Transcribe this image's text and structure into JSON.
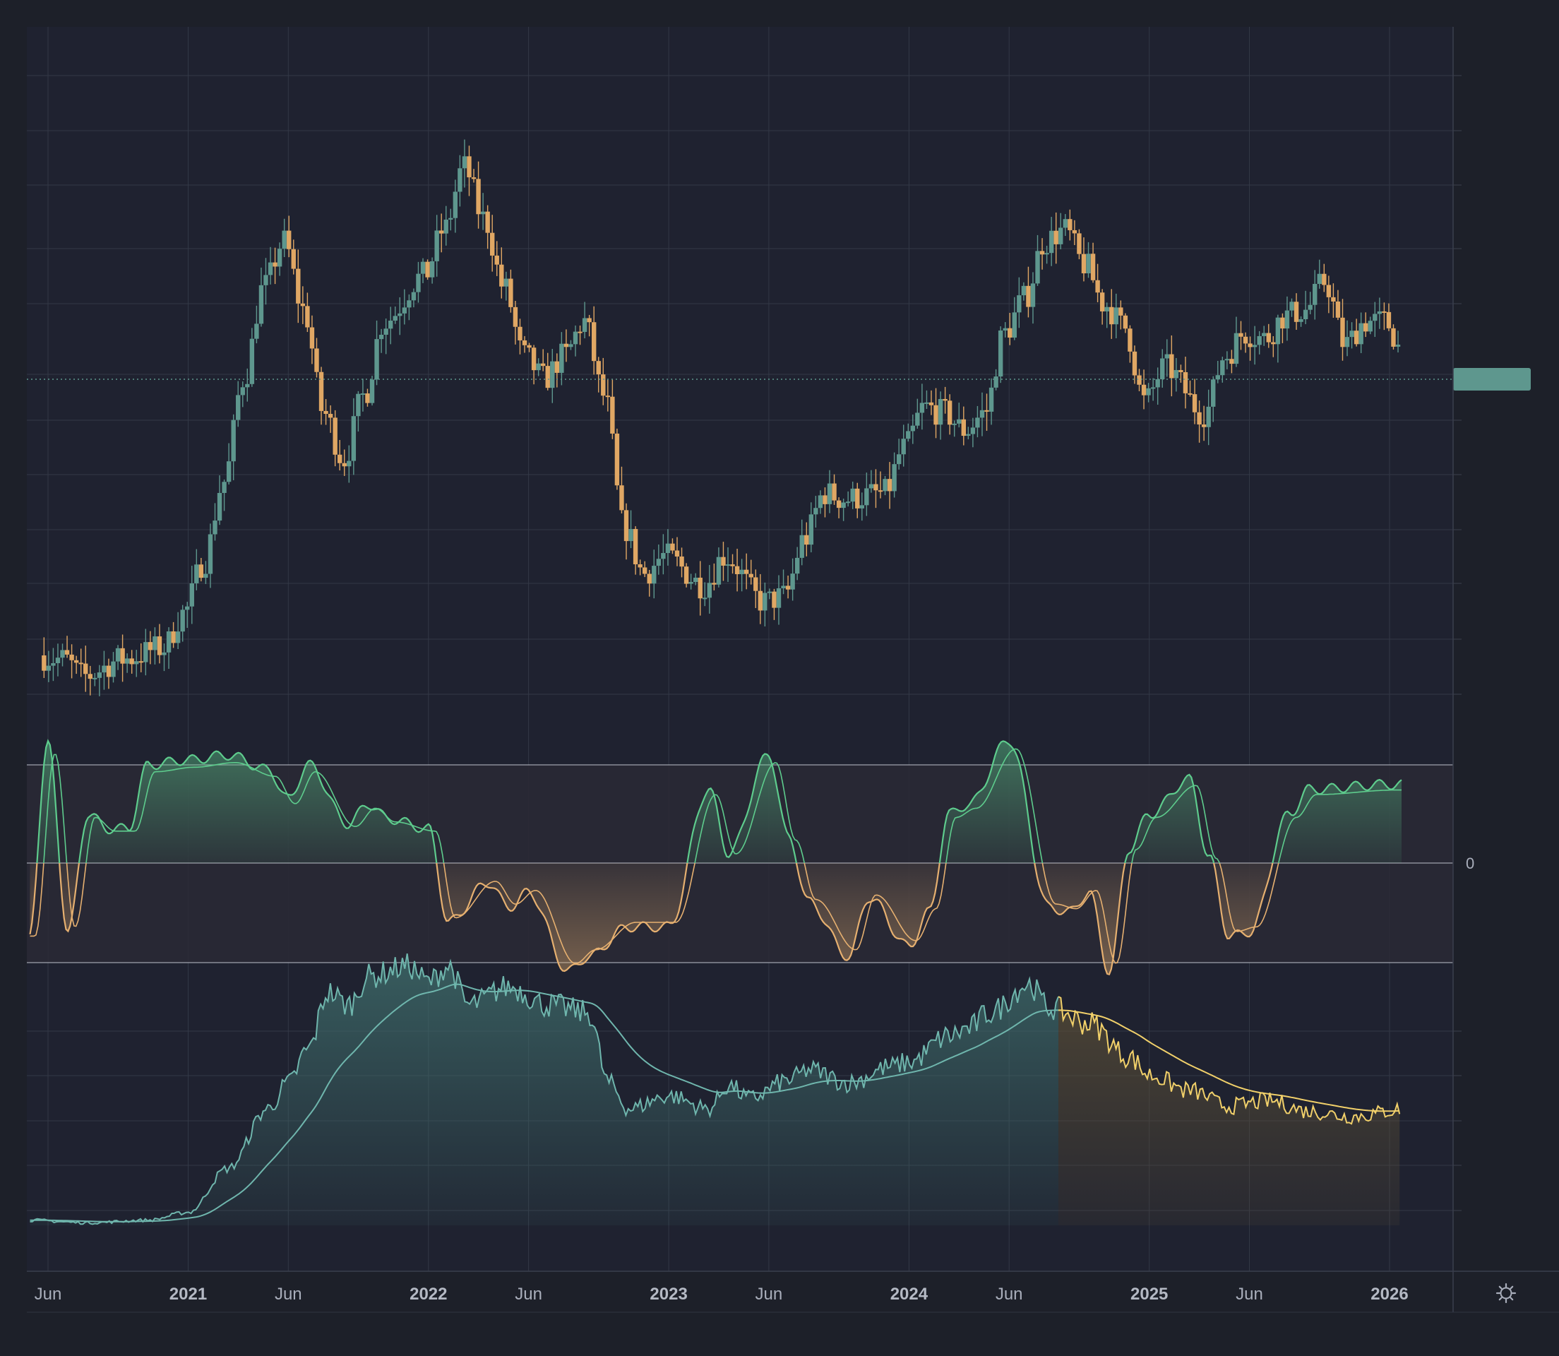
{
  "colors": {
    "background": "#1d2029",
    "pane": "#1f2230",
    "grid": "#333846",
    "up": "#5e978e",
    "down": "#e0a764",
    "osc_up": "#5ecc8d",
    "osc_down": "#e6b070",
    "volume_line": "#6fb6ad",
    "volume_fill_up": "#3f6e6c",
    "volume_fill_down": "#5b4f36",
    "slow_line": "#f1d06a",
    "price_label": "#5e978e"
  },
  "x_axis": {
    "ticks": [
      {
        "label": "Jun",
        "date": "2020-06",
        "major": false
      },
      {
        "label": "2021",
        "date": "2021-01",
        "major": true
      },
      {
        "label": "Jun",
        "date": "2021-06",
        "major": false
      },
      {
        "label": "2022",
        "date": "2022-01",
        "major": true
      },
      {
        "label": "Jun",
        "date": "2022-06",
        "major": false
      },
      {
        "label": "2023",
        "date": "2023-01",
        "major": true
      },
      {
        "label": "Jun",
        "date": "2023-06",
        "major": false
      },
      {
        "label": "2024",
        "date": "2024-01",
        "major": true
      },
      {
        "label": "Jun",
        "date": "2024-06",
        "major": false
      },
      {
        "label": "2025",
        "date": "2025-01",
        "major": true
      },
      {
        "label": "Jun",
        "date": "2025-06",
        "major": false
      },
      {
        "label": "2026",
        "date": "2026-01",
        "major": true
      }
    ]
  },
  "oscillator": {
    "zero_label": "0"
  },
  "settings_icon": "gear-icon",
  "chart_data": [
    {
      "type": "candlestick",
      "pane": "price",
      "x_range": [
        "2020-05",
        "2026-02"
      ],
      "y_range": [
        0,
        100
      ],
      "y_axis_labels": "not shown",
      "grid": true,
      "last_price_marker": true,
      "anchors": [
        {
          "d": "2020-05",
          "v": 8
        },
        {
          "d": "2020-07",
          "v": 7
        },
        {
          "d": "2020-08",
          "v": 4
        },
        {
          "d": "2020-10",
          "v": 7
        },
        {
          "d": "2020-12",
          "v": 9
        },
        {
          "d": "2021-01",
          "v": 15
        },
        {
          "d": "2021-02",
          "v": 24
        },
        {
          "d": "2021-03",
          "v": 38
        },
        {
          "d": "2021-04",
          "v": 56
        },
        {
          "d": "2021-05",
          "v": 72
        },
        {
          "d": "2021-06",
          "v": 80
        },
        {
          "d": "2021-07",
          "v": 68
        },
        {
          "d": "2021-08",
          "v": 50
        },
        {
          "d": "2021-09",
          "v": 42
        },
        {
          "d": "2021-10",
          "v": 53
        },
        {
          "d": "2021-11",
          "v": 66
        },
        {
          "d": "2022-01",
          "v": 74
        },
        {
          "d": "2022-02",
          "v": 82
        },
        {
          "d": "2022-03",
          "v": 93
        },
        {
          "d": "2022-04",
          "v": 84
        },
        {
          "d": "2022-05",
          "v": 72
        },
        {
          "d": "2022-06",
          "v": 60
        },
        {
          "d": "2022-07",
          "v": 56
        },
        {
          "d": "2022-08",
          "v": 60
        },
        {
          "d": "2022-09",
          "v": 66
        },
        {
          "d": "2022-10",
          "v": 53
        },
        {
          "d": "2022-11",
          "v": 30
        },
        {
          "d": "2022-12",
          "v": 22
        },
        {
          "d": "2023-01",
          "v": 25
        },
        {
          "d": "2023-03",
          "v": 20
        },
        {
          "d": "2023-04",
          "v": 25
        },
        {
          "d": "2023-06",
          "v": 17
        },
        {
          "d": "2023-07",
          "v": 18
        },
        {
          "d": "2023-08",
          "v": 28
        },
        {
          "d": "2023-09",
          "v": 36
        },
        {
          "d": "2023-10",
          "v": 35
        },
        {
          "d": "2023-12",
          "v": 36
        },
        {
          "d": "2024-01",
          "v": 44
        },
        {
          "d": "2024-02",
          "v": 51
        },
        {
          "d": "2024-03",
          "v": 50
        },
        {
          "d": "2024-04",
          "v": 47
        },
        {
          "d": "2024-05",
          "v": 50
        },
        {
          "d": "2024-06",
          "v": 64
        },
        {
          "d": "2024-07",
          "v": 70
        },
        {
          "d": "2024-08",
          "v": 80
        },
        {
          "d": "2024-09",
          "v": 82
        },
        {
          "d": "2024-10",
          "v": 76
        },
        {
          "d": "2024-11",
          "v": 69
        },
        {
          "d": "2024-12",
          "v": 65
        },
        {
          "d": "2025-01",
          "v": 52
        },
        {
          "d": "2025-02",
          "v": 58
        },
        {
          "d": "2025-04",
          "v": 50
        },
        {
          "d": "2025-05",
          "v": 60
        },
        {
          "d": "2025-06",
          "v": 64
        },
        {
          "d": "2025-07",
          "v": 63
        },
        {
          "d": "2025-08",
          "v": 67
        },
        {
          "d": "2025-09",
          "v": 68
        },
        {
          "d": "2025-10",
          "v": 73
        },
        {
          "d": "2025-11",
          "v": 62
        },
        {
          "d": "2025-12",
          "v": 66
        },
        {
          "d": "2026-01",
          "v": 66
        },
        {
          "d": "2026-02",
          "v": 60
        }
      ]
    },
    {
      "type": "area",
      "pane": "oscillator",
      "x_range": [
        "2020-05",
        "2026-02"
      ],
      "y_range": [
        -1,
        1
      ],
      "zero_line": true,
      "series": [
        {
          "role": "fast"
        },
        {
          "role": "slow"
        }
      ],
      "anchors": [
        {
          "d": "2020-05",
          "v": -0.8
        },
        {
          "d": "2020-06",
          "v": 1.2
        },
        {
          "d": "2020-07",
          "v": -0.7
        },
        {
          "d": "2020-08",
          "v": 0.5
        },
        {
          "d": "2020-09",
          "v": 0.35
        },
        {
          "d": "2020-10",
          "v": 0.35
        },
        {
          "d": "2020-11",
          "v": 1.0
        },
        {
          "d": "2021-01",
          "v": 1.05
        },
        {
          "d": "2021-03",
          "v": 1.1
        },
        {
          "d": "2021-05",
          "v": 0.95
        },
        {
          "d": "2021-06",
          "v": 0.65
        },
        {
          "d": "2021-07",
          "v": 1.0
        },
        {
          "d": "2021-09",
          "v": 0.4
        },
        {
          "d": "2021-10",
          "v": 0.6
        },
        {
          "d": "2021-11",
          "v": 0.45
        },
        {
          "d": "2022-01",
          "v": 0.35
        },
        {
          "d": "2022-02",
          "v": -0.6
        },
        {
          "d": "2022-04",
          "v": -0.2
        },
        {
          "d": "2022-05",
          "v": -0.45
        },
        {
          "d": "2022-06",
          "v": -0.3
        },
        {
          "d": "2022-08",
          "v": -1.1
        },
        {
          "d": "2022-09",
          "v": -0.95
        },
        {
          "d": "2022-11",
          "v": -0.65
        },
        {
          "d": "2023-01",
          "v": -0.65
        },
        {
          "d": "2023-03",
          "v": 0.75
        },
        {
          "d": "2023-04",
          "v": 0.1
        },
        {
          "d": "2023-06",
          "v": 1.1
        },
        {
          "d": "2023-07",
          "v": 0.25
        },
        {
          "d": "2023-08",
          "v": -0.4
        },
        {
          "d": "2023-10",
          "v": -0.95
        },
        {
          "d": "2023-11",
          "v": -0.35
        },
        {
          "d": "2024-01",
          "v": -0.85
        },
        {
          "d": "2024-02",
          "v": -0.5
        },
        {
          "d": "2024-03",
          "v": 0.5
        },
        {
          "d": "2024-04",
          "v": 0.6
        },
        {
          "d": "2024-06",
          "v": 1.25
        },
        {
          "d": "2024-08",
          "v": -0.45
        },
        {
          "d": "2024-09",
          "v": -0.5
        },
        {
          "d": "2024-10",
          "v": -0.3
        },
        {
          "d": "2024-11",
          "v": -1.1
        },
        {
          "d": "2024-12",
          "v": 0.15
        },
        {
          "d": "2025-01",
          "v": 0.5
        },
        {
          "d": "2025-03",
          "v": 0.85
        },
        {
          "d": "2025-04",
          "v": 0.05
        },
        {
          "d": "2025-05",
          "v": -0.75
        },
        {
          "d": "2025-06",
          "v": -0.7
        },
        {
          "d": "2025-08",
          "v": 0.5
        },
        {
          "d": "2025-09",
          "v": 0.75
        },
        {
          "d": "2026-01",
          "v": 0.8
        }
      ]
    },
    {
      "type": "area",
      "pane": "volume",
      "x_range": [
        "2020-05",
        "2026-02"
      ],
      "y_range": [
        0,
        100
      ],
      "series": [
        {
          "role": "value"
        },
        {
          "role": "moving-average"
        }
      ],
      "anchors": [
        {
          "d": "2020-05",
          "v": 2
        },
        {
          "d": "2020-08",
          "v": 1
        },
        {
          "d": "2020-11",
          "v": 2
        },
        {
          "d": "2021-01",
          "v": 5
        },
        {
          "d": "2021-03",
          "v": 22
        },
        {
          "d": "2021-05",
          "v": 45
        },
        {
          "d": "2021-06",
          "v": 55
        },
        {
          "d": "2021-07",
          "v": 68
        },
        {
          "d": "2021-08",
          "v": 90
        },
        {
          "d": "2021-09",
          "v": 85
        },
        {
          "d": "2021-10",
          "v": 96
        },
        {
          "d": "2021-12",
          "v": 100
        },
        {
          "d": "2022-01",
          "v": 94
        },
        {
          "d": "2022-02",
          "v": 100
        },
        {
          "d": "2022-03",
          "v": 85
        },
        {
          "d": "2022-05",
          "v": 92
        },
        {
          "d": "2022-07",
          "v": 85
        },
        {
          "d": "2022-09",
          "v": 82
        },
        {
          "d": "2022-10",
          "v": 55
        },
        {
          "d": "2022-11",
          "v": 45
        },
        {
          "d": "2023-01",
          "v": 50
        },
        {
          "d": "2023-03",
          "v": 45
        },
        {
          "d": "2023-04",
          "v": 54
        },
        {
          "d": "2023-05",
          "v": 49
        },
        {
          "d": "2023-07",
          "v": 56
        },
        {
          "d": "2023-08",
          "v": 60
        },
        {
          "d": "2023-10",
          "v": 55
        },
        {
          "d": "2023-12",
          "v": 61
        },
        {
          "d": "2024-01",
          "v": 63
        },
        {
          "d": "2024-03",
          "v": 73
        },
        {
          "d": "2024-04",
          "v": 76
        },
        {
          "d": "2024-05",
          "v": 82
        },
        {
          "d": "2024-07",
          "v": 93
        },
        {
          "d": "2024-08",
          "v": 84
        },
        {
          "d": "2024-10",
          "v": 78
        },
        {
          "d": "2024-12",
          "v": 65
        },
        {
          "d": "2025-01",
          "v": 58
        },
        {
          "d": "2025-03",
          "v": 52
        },
        {
          "d": "2025-05",
          "v": 46
        },
        {
          "d": "2025-07",
          "v": 48
        },
        {
          "d": "2025-09",
          "v": 44
        },
        {
          "d": "2025-11",
          "v": 42
        },
        {
          "d": "2026-02",
          "v": 45
        }
      ]
    }
  ]
}
